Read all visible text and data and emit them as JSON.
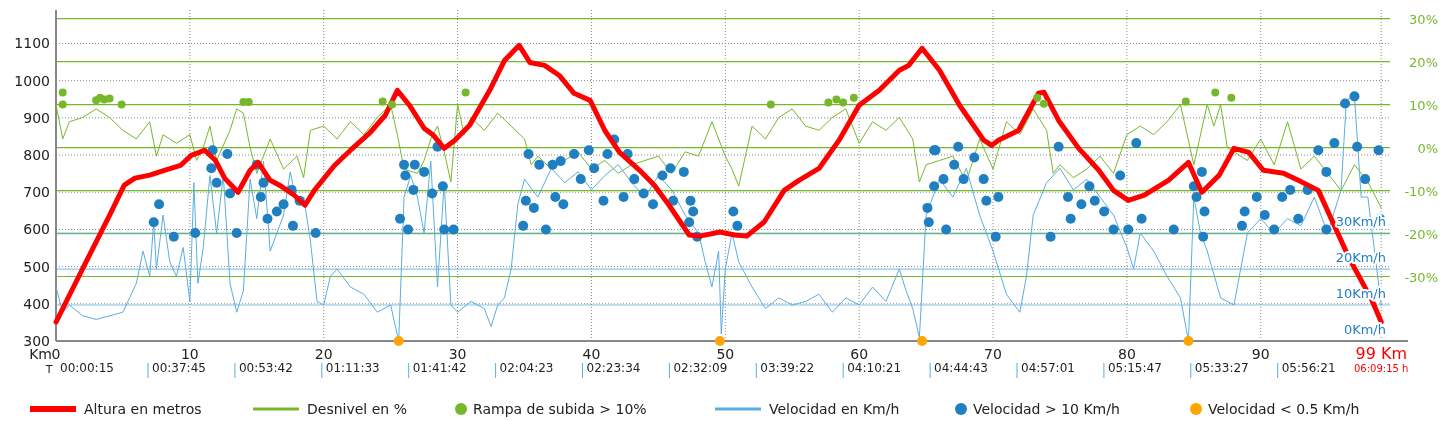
{
  "chart_data": {
    "type": "line",
    "xlabel": "Km",
    "xlim": [
      0,
      101
    ],
    "xticks": [
      0,
      10,
      20,
      30,
      40,
      50,
      60,
      70,
      80,
      90,
      {
        "value": 99,
        "label": "99 Km"
      }
    ],
    "annotations": [
      "T",
      "00:00:15",
      "00:37:45",
      "00:53:42",
      "01:11:33",
      "01:41:42",
      "02:04:23",
      "02:23:34",
      "02:32:09",
      "03:39:22",
      "04:10:21",
      "04:44:43",
      "04:57:01",
      "05:15:47",
      "05:33:27",
      "05:56:21",
      "06:09:15 h"
    ],
    "ylim": [
      300,
      1190
    ],
    "yticks": [
      300,
      400,
      500,
      600,
      700,
      800,
      900,
      1000,
      1100
    ],
    "y2lim": [
      -45,
      32
    ],
    "y2ticks": [
      {
        "value": -30,
        "label": "-30%"
      },
      {
        "value": -20,
        "label": "-20%"
      },
      {
        "value": -10,
        "label": "-10%"
      },
      {
        "value": 0,
        "label": "0%"
      },
      {
        "value": 10,
        "label": "10%"
      },
      {
        "value": 20,
        "label": "20%"
      },
      {
        "value": 30,
        "label": "30%"
      }
    ],
    "y3lim": [
      0,
      92
    ],
    "y3ticks": [
      {
        "value": 0,
        "label": "0Km/h"
      },
      {
        "value": 10,
        "label": "10Km/h"
      },
      {
        "value": 20,
        "label": "20Km/h"
      },
      {
        "value": 30,
        "label": "30Km/h"
      }
    ],
    "grid": true,
    "legend": "bottom",
    "series": [
      {
        "name": "Altura en metros",
        "axis": "y",
        "color": "#ff0000",
        "x": [
          0,
          1,
          2.5,
          4,
          5.1,
          5.9,
          7,
          8.1,
          9.3,
          10.1,
          11.1,
          11.9,
          12.6,
          13.6,
          14.5,
          15.1,
          16,
          16.7,
          17.8,
          18.6,
          19.3,
          20.8,
          22,
          23.4,
          24.6,
          25.5,
          26.4,
          27.5,
          28.2,
          29,
          29.8,
          30.9,
          32.4,
          33.5,
          34.6,
          35.4,
          36.5,
          37.6,
          38.7,
          39.9,
          41,
          42.1,
          43.6,
          44.7,
          45.8,
          47.3,
          48.1,
          49.6,
          50.7,
          51.6,
          52.9,
          54.4,
          55.5,
          57,
          58.5,
          60,
          61.5,
          63,
          63.7,
          64.7,
          66,
          67.5,
          69.3,
          69.9,
          70.4,
          71.9,
          73.4,
          73.8,
          74.9,
          76.4,
          77.9,
          79,
          80.1,
          81.3,
          83.1,
          84.6,
          85.6,
          86.9,
          88,
          89.1,
          90.2,
          91.7,
          92.8,
          94.3,
          96.6,
          98.3,
          99
        ],
        "values": [
          351,
          423,
          531,
          638,
          719,
          738,
          746,
          759,
          772,
          799,
          813,
          786,
          738,
          700,
          759,
          780,
          732,
          719,
          692,
          665,
          705,
          772,
          813,
          858,
          907,
          974,
          934,
          872,
          853,
          818,
          840,
          880,
          974,
          1054,
          1095,
          1049,
          1041,
          1014,
          966,
          947,
          866,
          807,
          759,
          719,
          665,
          585,
          582,
          593,
          585,
          582,
          620,
          705,
          732,
          764,
          840,
          934,
          974,
          1028,
          1041,
          1087,
          1028,
          934,
          840,
          826,
          840,
          866,
          966,
          969,
          893,
          818,
          759,
          705,
          678,
          692,
          732,
          780,
          700,
          746,
          818,
          807,
          759,
          751,
          732,
          705,
          523,
          410,
          351
        ]
      },
      {
        "name": "Desnivel en %",
        "axis": "y2",
        "color": "#77b82a",
        "x": [
          0,
          0.5,
          1,
          2,
          3,
          4,
          5,
          6,
          7,
          7.5,
          8,
          9,
          10,
          10.5,
          11,
          11.5,
          12,
          13,
          13.5,
          14,
          14.5,
          15,
          16,
          17,
          18,
          18.5,
          19,
          20,
          21,
          22,
          23,
          24,
          25,
          25.5,
          26,
          27,
          27.5,
          28,
          28.5,
          29,
          29.5,
          30,
          30.5,
          31,
          32,
          33,
          34,
          35,
          35.5,
          36,
          37,
          38,
          39,
          40,
          41,
          42,
          43,
          44,
          45,
          46,
          47,
          48,
          49,
          49.5,
          50,
          50.5,
          51,
          52,
          53,
          54,
          55,
          56,
          57,
          58,
          59,
          60,
          61,
          62,
          63,
          64,
          64.5,
          65,
          66,
          67,
          68,
          69,
          70,
          71,
          72,
          73,
          74,
          74.5,
          75,
          76,
          77,
          78,
          79,
          80,
          81,
          82,
          83,
          84,
          84.5,
          85,
          86,
          86.5,
          87,
          87.5,
          88,
          89,
          90,
          91,
          92,
          93,
          94,
          95,
          96,
          97,
          98,
          99
        ],
        "values": [
          10,
          2,
          6,
          7,
          9,
          7,
          4,
          2,
          6,
          -2,
          3,
          1,
          3,
          -3,
          0,
          5,
          -3,
          4,
          9,
          8,
          0,
          -6,
          2,
          -5,
          -2,
          -7,
          4,
          5,
          2,
          6,
          3,
          7,
          10,
          3,
          -5,
          -6,
          -3,
          2,
          5,
          -1,
          -8,
          10,
          3,
          7,
          4,
          8,
          5,
          2,
          -4,
          -2,
          -5,
          -3,
          -1,
          -5,
          -3,
          -6,
          -4,
          -3,
          -2,
          -6,
          -1,
          -2,
          6,
          2,
          -2,
          -5,
          -9,
          5,
          2,
          7,
          9,
          5,
          4,
          7,
          9,
          1,
          6,
          4,
          7,
          2,
          -8,
          -4,
          -3,
          -2,
          -8,
          2,
          -5,
          6,
          3,
          9,
          4,
          -6,
          -4,
          -7,
          -5,
          -2,
          -6,
          3,
          5,
          3,
          6,
          10,
          3,
          -4,
          10,
          5,
          10,
          0,
          -1,
          -3,
          2,
          -4,
          6,
          -5,
          -2,
          -6,
          -10,
          -4,
          -8,
          -14
        ]
      },
      {
        "name": "Rampa de subida > 10%",
        "type": "scatter",
        "axis": "y2",
        "color": "#77b82a",
        "x": [
          0.5,
          0.5,
          3,
          3.3,
          3.6,
          4,
          4.9,
          14,
          14.4,
          24.4,
          25.1,
          30.6,
          53.4,
          57.7,
          58.3,
          58.8,
          59.6,
          73.3,
          73.8,
          84.4,
          86.6,
          87.8
        ],
        "values": [
          12.8,
          10,
          11,
          11.6,
          11.2,
          11.4,
          10,
          10.6,
          10.6,
          10.7,
          10,
          12.8,
          10,
          10.5,
          11.2,
          10.5,
          11.6,
          11.6,
          10.2,
          10.7,
          12.8,
          11.6
        ]
      },
      {
        "name": "Velocidad en Km/h",
        "axis": "y3",
        "color": "#5aaee0",
        "x": [
          0,
          0.5,
          1,
          2,
          3,
          4,
          5,
          5.5,
          6,
          6.5,
          7,
          7.3,
          7.5,
          8,
          8.5,
          9,
          9.5,
          10,
          10.3,
          10.6,
          11,
          11.5,
          12,
          12.5,
          13,
          13.5,
          14,
          14.5,
          15,
          15.5,
          16,
          16.5,
          17,
          17.5,
          18,
          18.5,
          19,
          19.5,
          20,
          20.5,
          21,
          22,
          23,
          24,
          25,
          25.6,
          26,
          26.5,
          27,
          27.5,
          28,
          28.5,
          29,
          29.5,
          30,
          31,
          32,
          32.5,
          33,
          33.5,
          34,
          34.5,
          35,
          36,
          37,
          38,
          39,
          40,
          41,
          42,
          43,
          44,
          45,
          46,
          47,
          48,
          48.5,
          49,
          49.5,
          49.7,
          50,
          50.5,
          51,
          52,
          53,
          54,
          55,
          56,
          57,
          58,
          59,
          60,
          61,
          62,
          63,
          63.5,
          64,
          64.5,
          65,
          66,
          67,
          68,
          69,
          70,
          71,
          72,
          72.5,
          73,
          74,
          75,
          76,
          77,
          78,
          79,
          80,
          80.5,
          81,
          82,
          83,
          84,
          84.6,
          85,
          85.5,
          86,
          87,
          88,
          89,
          90,
          91,
          92,
          93,
          94,
          95,
          96,
          96.4,
          97,
          97.5,
          98,
          99
        ],
        "values": [
          15,
          8,
          10,
          7,
          6,
          7,
          8,
          12,
          16,
          25,
          18,
          33,
          20,
          35,
          22,
          18,
          26,
          11,
          44,
          16,
          26,
          46,
          30,
          46,
          16,
          8,
          14,
          45,
          34,
          50,
          25,
          30,
          35,
          47,
          38,
          40,
          28,
          11,
          10,
          18,
          20,
          15,
          13,
          8,
          10,
          0,
          40,
          46,
          40,
          30,
          50,
          15,
          44,
          10,
          8,
          11,
          9,
          4,
          10,
          12,
          20,
          38,
          45,
          40,
          48,
          44,
          47,
          42,
          46,
          49,
          44,
          40,
          46,
          42,
          35,
          30,
          22,
          15,
          25,
          2,
          20,
          30,
          22,
          15,
          9,
          12,
          10,
          11,
          13,
          8,
          12,
          10,
          15,
          11,
          20,
          14,
          9,
          1,
          35,
          45,
          40,
          48,
          35,
          25,
          13,
          8,
          18,
          35,
          44,
          48,
          42,
          45,
          40,
          35,
          26,
          20,
          30,
          25,
          18,
          12,
          0,
          40,
          30,
          25,
          12,
          10,
          30,
          34,
          30,
          34,
          32,
          40,
          30,
          42,
          67,
          68,
          40,
          40,
          10
        ]
      },
      {
        "name": "Velocidad > 10 Km/h",
        "type": "scatter",
        "axis": "y3",
        "color": "#1f7fc0",
        "x": [
          7.3,
          7.7,
          8.8,
          10.4,
          11.7,
          11.6,
          12.8,
          12,
          13,
          13.5,
          15,
          15.5,
          15.3,
          15.8,
          16.5,
          17,
          17.6,
          17.7,
          18.2,
          19.4,
          26,
          26.1,
          25.7,
          26.3,
          26.8,
          26.7,
          27.5,
          28.1,
          28.5,
          28.9,
          29,
          29.7,
          34.9,
          35.3,
          35.1,
          35.7,
          36.1,
          36.6,
          37.1,
          37.7,
          37.3,
          37.9,
          38.7,
          39.2,
          39.8,
          40.2,
          40.9,
          41.2,
          41.7,
          42.7,
          42.4,
          43.2,
          43.9,
          44.6,
          45.3,
          45.9,
          46.1,
          46.9,
          47.4,
          47.6,
          47.3,
          47.9,
          50.6,
          50.9,
          65.1,
          65.2,
          65.6,
          65.6,
          65.7,
          66.3,
          66.5,
          67.4,
          67.1,
          67.8,
          68.6,
          69.3,
          69.5,
          70.4,
          70.2,
          74.9,
          74.3,
          75.6,
          75.8,
          76.6,
          77.2,
          77.6,
          78.3,
          79,
          79.5,
          80.1,
          80.7,
          81.1,
          83.5,
          85,
          85.6,
          85.2,
          85.8,
          85.7,
          88.8,
          88.6,
          89.7,
          90.3,
          91,
          91.6,
          92.2,
          92.8,
          93.5,
          94.3,
          94.9,
          95.5,
          96.3,
          97,
          97.2,
          97.8,
          98.8,
          98.9,
          94.9
        ],
        "values": [
          33,
          38,
          29,
          30,
          53,
          48,
          52,
          44,
          41,
          30,
          49,
          44,
          40,
          34,
          36,
          38,
          42,
          32,
          39,
          30,
          49,
          46,
          34,
          31,
          49,
          42,
          47,
          41,
          54,
          43,
          31,
          31,
          32,
          52,
          39,
          37,
          49,
          31,
          49,
          50,
          40,
          38,
          52,
          45,
          53,
          48,
          39,
          52,
          56,
          52,
          40,
          45,
          41,
          38,
          46,
          48,
          39,
          47,
          39,
          36,
          33,
          29,
          36,
          32,
          37,
          33,
          53,
          43,
          53,
          45,
          31,
          54,
          49,
          45,
          51,
          45,
          39,
          40,
          29,
          54,
          29,
          40,
          34,
          38,
          43,
          39,
          36,
          31,
          46,
          31,
          55,
          34,
          31,
          43,
          47,
          40,
          36,
          29,
          36,
          32,
          40,
          35,
          31,
          40,
          42,
          34,
          42,
          53,
          47,
          55,
          66,
          68,
          54,
          45,
          53,
          34,
          31
        ]
      },
      {
        "name": "Velocidad < 0.5 Km/h",
        "type": "scatter",
        "axis": "y3",
        "color": "#ffa500",
        "x": [
          25.6,
          49.6,
          64.7,
          84.6
        ],
        "values": [
          0,
          0,
          0,
          0
        ]
      }
    ]
  }
}
